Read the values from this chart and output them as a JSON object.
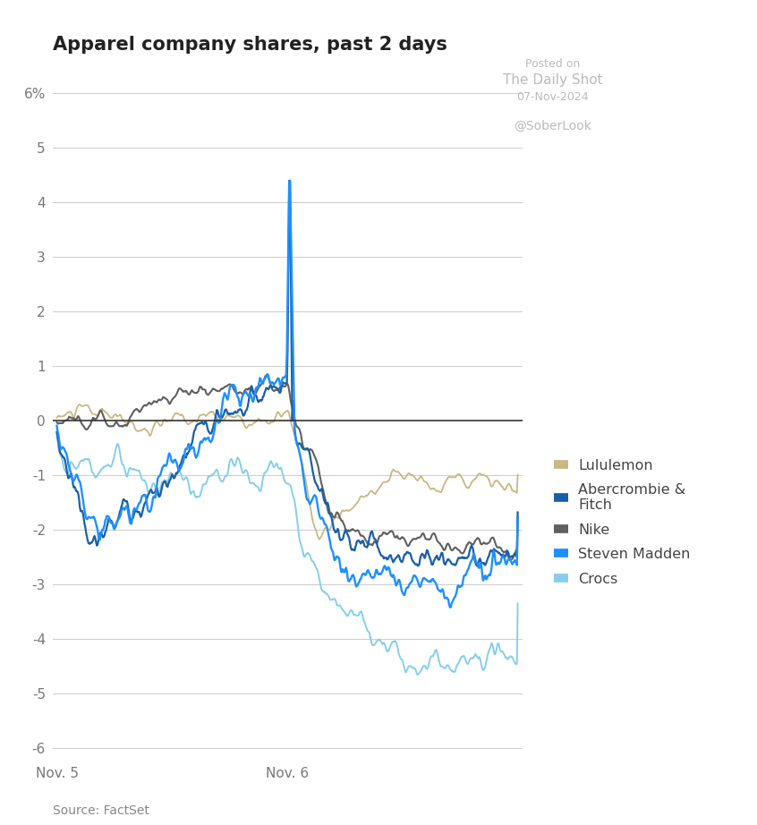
{
  "title": "Apparel company shares, past 2 days",
  "source": "Source: FactSet",
  "watermark_line1": "Posted on",
  "watermark_line2": "The Daily Shot",
  "watermark_line3": "07-Nov-2024",
  "watermark_line4": "@SoberLook",
  "yticks": [
    6,
    5,
    4,
    3,
    2,
    1,
    0,
    -1,
    -2,
    -3,
    -4,
    -5,
    -6
  ],
  "ytick_labels": [
    "6%",
    "5",
    "4",
    "3",
    "2",
    "1",
    "0",
    "-1",
    "-2",
    "-3",
    "-4",
    "-5",
    "-6"
  ],
  "ylim": [
    -6.2,
    6.2
  ],
  "xtick_labels": [
    "Nov. 5",
    "Nov. 6"
  ],
  "legend_labels": [
    "Lululemon",
    "Abercrombie &\nFitch",
    "Nike",
    "Steven Madden",
    "Crocs"
  ],
  "colors": {
    "Lululemon": "#c8b882",
    "Abercrombie": "#1a5fa8",
    "Nike": "#606060",
    "Steven Madden": "#1e90ff",
    "Crocs": "#87ceeb"
  },
  "background_color": "#ffffff",
  "grid_color": "#cccccc",
  "zero_line_color": "#333333"
}
